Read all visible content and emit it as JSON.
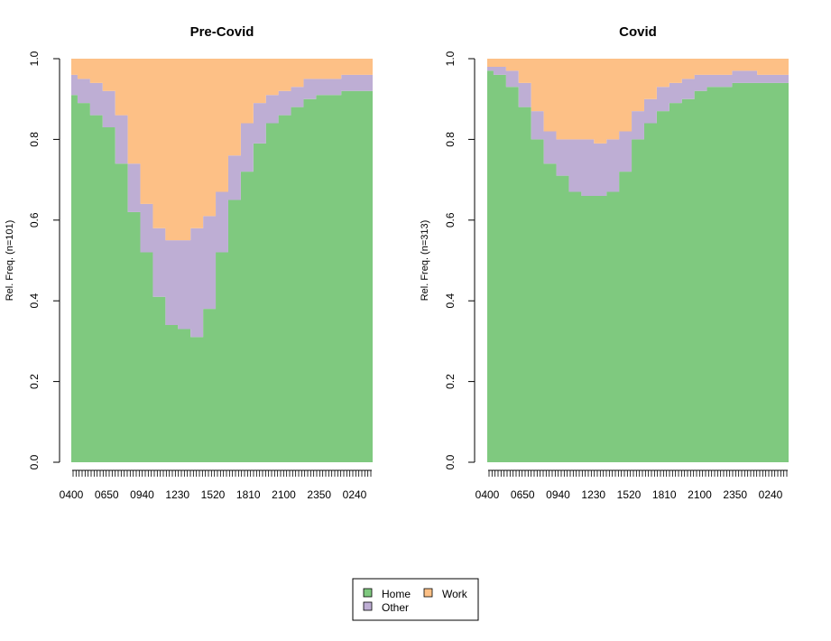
{
  "chart_data": [
    {
      "type": "area",
      "stacked": true,
      "title": "Pre-Covid",
      "xlabel": "",
      "ylabel": "Rel. Freq. (n=101)",
      "ylim": [
        0,
        1
      ],
      "y_ticks": [
        "0.0",
        "0.2",
        "0.4",
        "0.6",
        "0.8",
        "1.0"
      ],
      "x_tick_labels": [
        "0400",
        "0650",
        "0940",
        "1230",
        "1520",
        "1810",
        "2100",
        "2350",
        "0240"
      ],
      "x": [
        "0400",
        "0500",
        "0600",
        "0700",
        "0800",
        "0900",
        "1000",
        "1100",
        "1200",
        "1300",
        "1400",
        "1500",
        "1600",
        "1700",
        "1800",
        "1900",
        "2000",
        "2100",
        "2200",
        "2300",
        "0000",
        "0100",
        "0200",
        "0300",
        "0400"
      ],
      "series": [
        {
          "name": "Home",
          "color": "#7fc97f",
          "values": [
            0.91,
            0.89,
            0.86,
            0.83,
            0.74,
            0.62,
            0.52,
            0.41,
            0.34,
            0.33,
            0.31,
            0.38,
            0.52,
            0.65,
            0.72,
            0.79,
            0.84,
            0.86,
            0.88,
            0.9,
            0.91,
            0.91,
            0.92,
            0.92,
            0.92
          ]
        },
        {
          "name": "Other",
          "color": "#beaed4",
          "values": [
            0.05,
            0.06,
            0.08,
            0.09,
            0.12,
            0.12,
            0.12,
            0.17,
            0.21,
            0.22,
            0.27,
            0.23,
            0.15,
            0.11,
            0.12,
            0.1,
            0.07,
            0.06,
            0.05,
            0.05,
            0.04,
            0.04,
            0.04,
            0.04,
            0.04
          ]
        },
        {
          "name": "Work",
          "color": "#fdc086",
          "values": [
            0.04,
            0.05,
            0.06,
            0.08,
            0.14,
            0.26,
            0.36,
            0.42,
            0.45,
            0.45,
            0.42,
            0.39,
            0.33,
            0.24,
            0.16,
            0.11,
            0.09,
            0.08,
            0.07,
            0.05,
            0.05,
            0.05,
            0.04,
            0.04,
            0.04
          ]
        }
      ]
    },
    {
      "type": "area",
      "stacked": true,
      "title": "Covid",
      "xlabel": "",
      "ylabel": "Rel. Freq. (n=313)",
      "ylim": [
        0,
        1
      ],
      "y_ticks": [
        "0.0",
        "0.2",
        "0.4",
        "0.6",
        "0.8",
        "1.0"
      ],
      "x_tick_labels": [
        "0400",
        "0650",
        "0940",
        "1230",
        "1520",
        "1810",
        "2100",
        "2350",
        "0240"
      ],
      "x": [
        "0400",
        "0500",
        "0600",
        "0700",
        "0800",
        "0900",
        "1000",
        "1100",
        "1200",
        "1300",
        "1400",
        "1500",
        "1600",
        "1700",
        "1800",
        "1900",
        "2000",
        "2100",
        "2200",
        "2300",
        "0000",
        "0100",
        "0200",
        "0300",
        "0400"
      ],
      "series": [
        {
          "name": "Home",
          "color": "#7fc97f",
          "values": [
            0.97,
            0.96,
            0.93,
            0.88,
            0.8,
            0.74,
            0.71,
            0.67,
            0.66,
            0.66,
            0.67,
            0.72,
            0.8,
            0.84,
            0.87,
            0.89,
            0.9,
            0.92,
            0.93,
            0.93,
            0.94,
            0.94,
            0.94,
            0.94,
            0.94
          ]
        },
        {
          "name": "Other",
          "color": "#beaed4",
          "values": [
            0.01,
            0.02,
            0.04,
            0.06,
            0.07,
            0.08,
            0.09,
            0.13,
            0.14,
            0.13,
            0.13,
            0.1,
            0.07,
            0.06,
            0.06,
            0.05,
            0.05,
            0.04,
            0.03,
            0.03,
            0.03,
            0.03,
            0.02,
            0.02,
            0.02
          ]
        },
        {
          "name": "Work",
          "color": "#fdc086",
          "values": [
            0.02,
            0.02,
            0.03,
            0.06,
            0.13,
            0.18,
            0.2,
            0.2,
            0.2,
            0.21,
            0.2,
            0.18,
            0.13,
            0.1,
            0.07,
            0.06,
            0.05,
            0.04,
            0.04,
            0.04,
            0.03,
            0.03,
            0.04,
            0.04,
            0.04
          ]
        }
      ]
    }
  ],
  "legend": {
    "position": "bottom-center",
    "items": [
      {
        "label": "Home",
        "color": "#7fc97f"
      },
      {
        "label": "Work",
        "color": "#fdc086"
      },
      {
        "label": "Other",
        "color": "#beaed4"
      }
    ]
  }
}
